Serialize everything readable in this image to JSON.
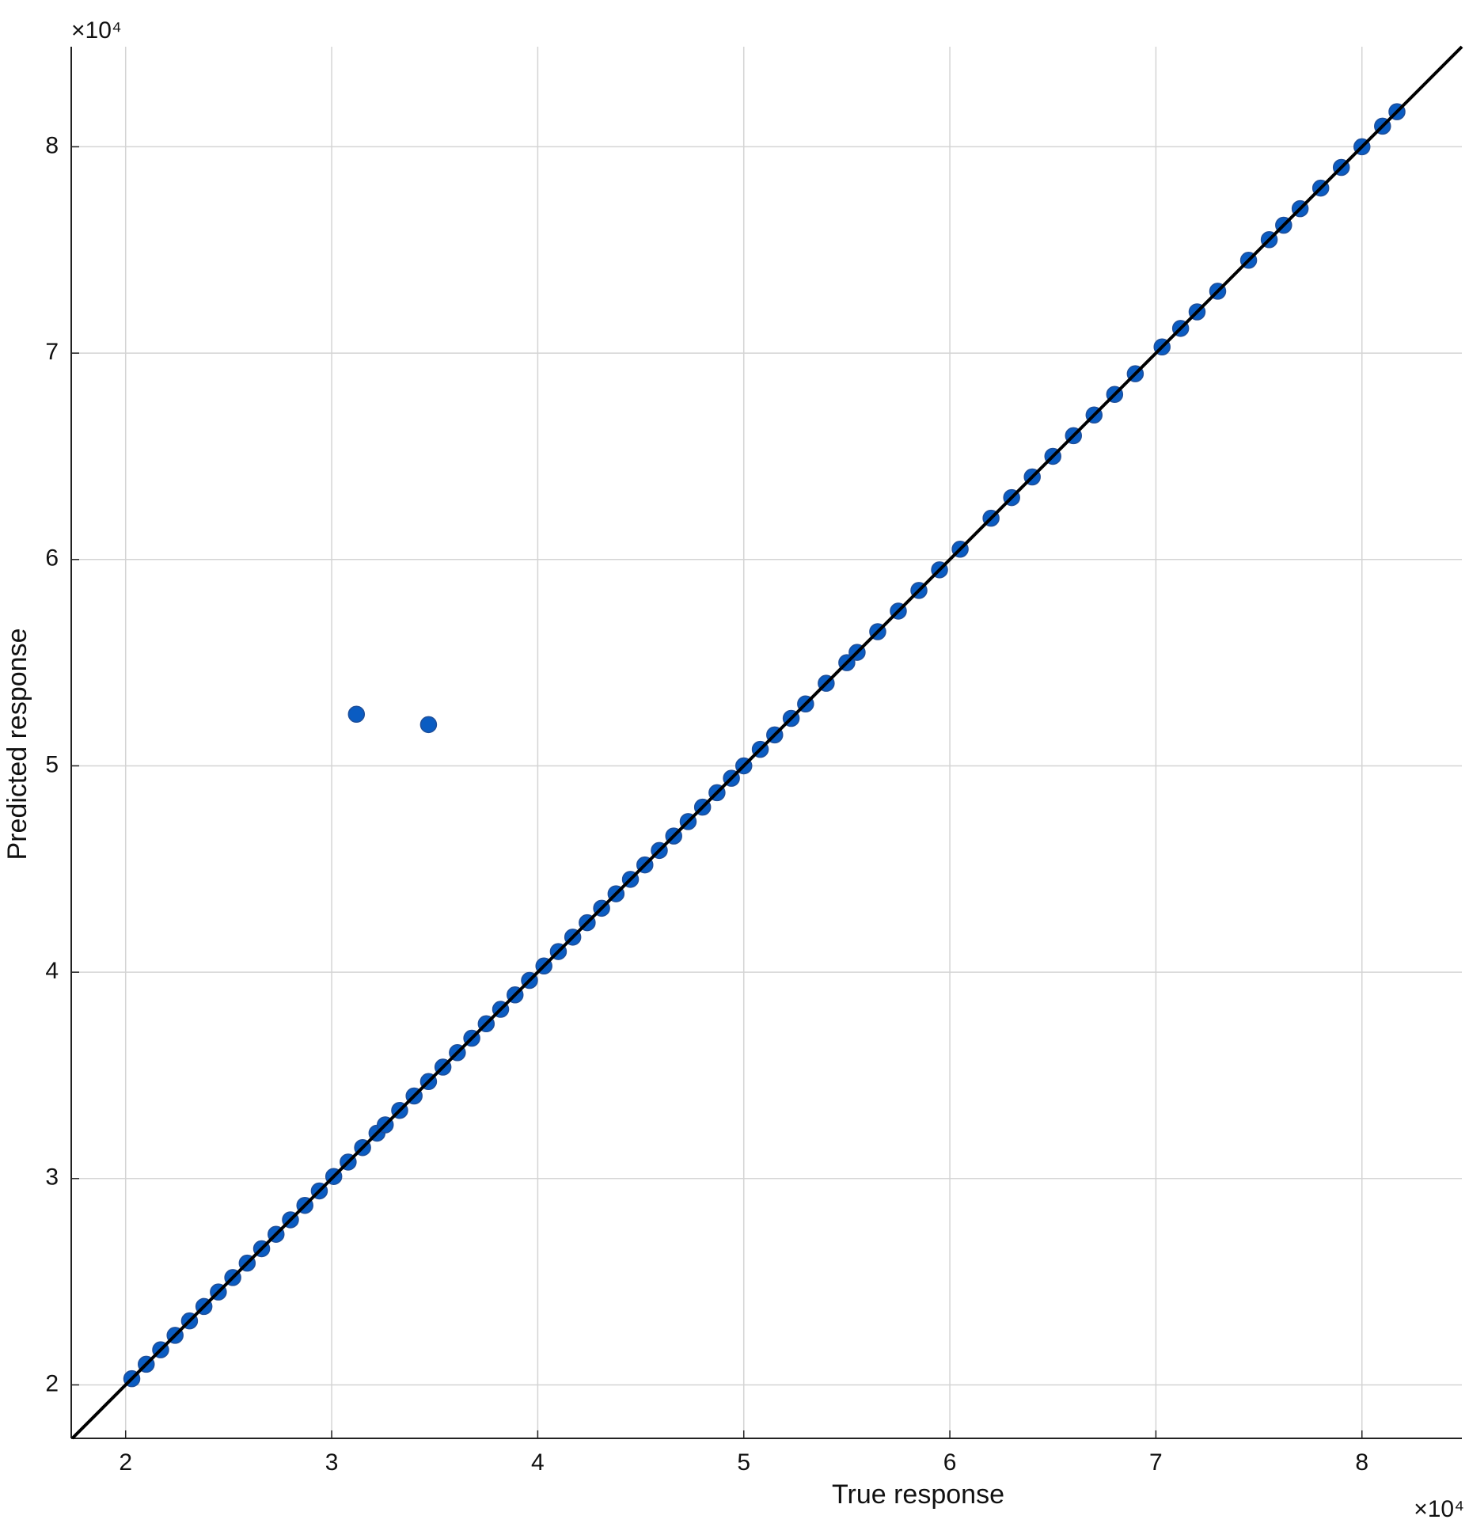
{
  "chart_data": {
    "type": "scatter",
    "xlabel": "True response",
    "ylabel": "Predicted response",
    "x_multiplier": "×10⁴",
    "y_multiplier": "×10⁴",
    "color": "#0a5cc2",
    "diagonal": true,
    "grid": true,
    "xlim": [
      17360,
      84850
    ],
    "ylim": [
      17410,
      84850
    ],
    "xticks": [
      {
        "value": 20000,
        "label": "2"
      },
      {
        "value": 30000,
        "label": "3"
      },
      {
        "value": 40000,
        "label": "4"
      },
      {
        "value": 50000,
        "label": "5"
      },
      {
        "value": 60000,
        "label": "6"
      },
      {
        "value": 70000,
        "label": "7"
      },
      {
        "value": 80000,
        "label": "8"
      }
    ],
    "yticks": [
      {
        "value": 20000,
        "label": "2"
      },
      {
        "value": 30000,
        "label": "3"
      },
      {
        "value": 40000,
        "label": "4"
      },
      {
        "value": 50000,
        "label": "5"
      },
      {
        "value": 60000,
        "label": "6"
      },
      {
        "value": 70000,
        "label": "7"
      },
      {
        "value": 80000,
        "label": "8"
      }
    ],
    "x": [
      20300,
      21000,
      21700,
      22400,
      23100,
      23800,
      24500,
      25200,
      25900,
      26600,
      27300,
      28000,
      28700,
      29400,
      30100,
      30800,
      31500,
      32200,
      32600,
      33300,
      34000,
      34700,
      35400,
      36100,
      36800,
      37500,
      38200,
      38900,
      39600,
      40300,
      41000,
      41700,
      42400,
      43100,
      43800,
      44500,
      45200,
      45900,
      46600,
      47300,
      48000,
      48700,
      49400,
      50000,
      50800,
      51500,
      52300,
      53000,
      54000,
      55000,
      55500,
      56500,
      57500,
      58500,
      59500,
      60500,
      62000,
      63000,
      64000,
      65000,
      66000,
      67000,
      68000,
      69000,
      70300,
      71200,
      72000,
      73000,
      74500,
      75500,
      76200,
      77000,
      78000,
      79000,
      80000,
      81000,
      81700,
      31200,
      34700
    ],
    "y": [
      20300,
      21000,
      21700,
      22400,
      23100,
      23800,
      24500,
      25200,
      25900,
      26600,
      27300,
      28000,
      28700,
      29400,
      30100,
      30800,
      31500,
      32200,
      32600,
      33300,
      34000,
      34700,
      35400,
      36100,
      36800,
      37500,
      38200,
      38900,
      39600,
      40300,
      41000,
      41700,
      42400,
      43100,
      43800,
      44500,
      45200,
      45900,
      46600,
      47300,
      48000,
      48700,
      49400,
      50000,
      50800,
      51500,
      52300,
      53000,
      54000,
      55000,
      55500,
      56500,
      57500,
      58500,
      59500,
      60500,
      62000,
      63000,
      64000,
      65000,
      66000,
      67000,
      68000,
      69000,
      70300,
      71200,
      72000,
      73000,
      74500,
      75500,
      76200,
      77000,
      78000,
      79000,
      80000,
      81000,
      81700,
      52500,
      52000
    ]
  }
}
